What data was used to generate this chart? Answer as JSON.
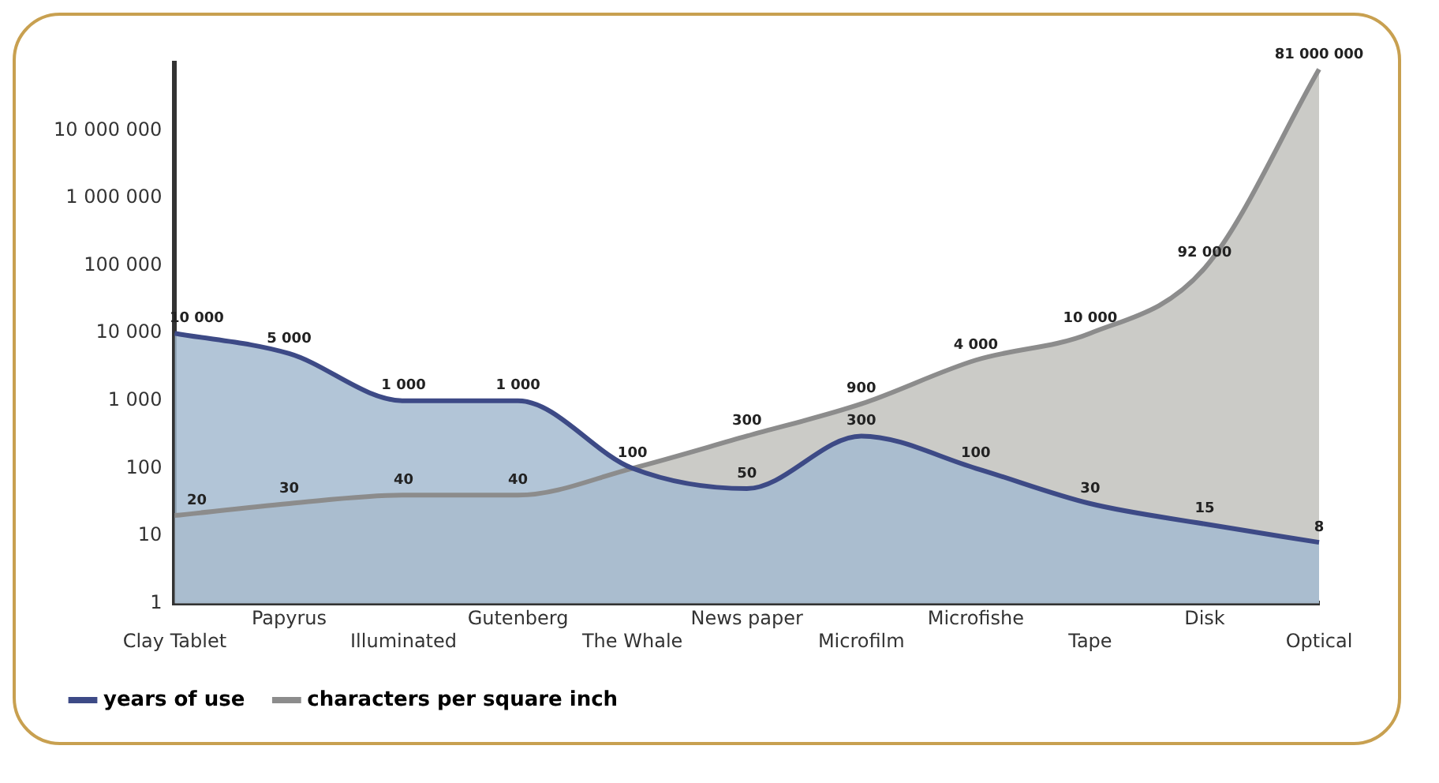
{
  "chart_data": {
    "type": "area",
    "categories": [
      "Clay Tablet",
      "Papyrus",
      "Illuminated",
      "Gutenberg",
      "The Whale",
      "News paper",
      "Microfilm",
      "Microfishe",
      "Tape",
      "Disk",
      "Optical"
    ],
    "series": [
      {
        "name": "characters per square inch",
        "color": "#8c8c8c",
        "values": [
          20,
          30,
          40,
          40,
          100,
          300,
          900,
          4000,
          10000,
          92000,
          81000000
        ],
        "value_labels": [
          "20",
          "30",
          "40",
          "40",
          null,
          "300",
          "900",
          "4 000",
          "10 000",
          "92 000",
          "81 000 000"
        ]
      },
      {
        "name": "years of use",
        "color": "#3d4a86",
        "values": [
          10000,
          5000,
          1000,
          1000,
          100,
          50,
          300,
          100,
          30,
          15,
          8
        ],
        "value_labels": [
          "10 000",
          "5 000",
          "1 000",
          "1 000",
          "100",
          "50",
          "300",
          "100",
          "30",
          "15",
          "8"
        ]
      }
    ],
    "log": "y",
    "ylim": [
      1,
      100000000
    ],
    "yticks": [
      1,
      10,
      100,
      {
        "value": 1000,
        "label": "1 000"
      },
      {
        "value": 10000,
        "label": "10 000"
      },
      {
        "value": 100000,
        "label": "100 000"
      },
      {
        "value": 1000000,
        "label": "1 000 000"
      },
      {
        "value": 10000000,
        "label": "10 000 000"
      }
    ],
    "grid": false,
    "legend": "bottom",
    "marker": "none"
  }
}
